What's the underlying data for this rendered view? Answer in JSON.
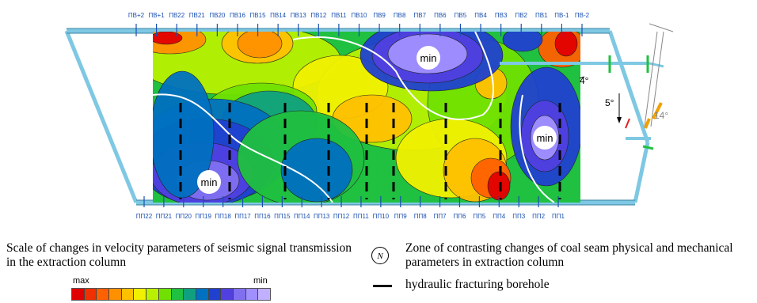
{
  "top_labels": [
    "ПВ+2",
    "ПВ+1",
    "ПВ22",
    "ПВ21",
    "ПВ20",
    "ПВ16",
    "ПВ15",
    "ПВ14",
    "ПВ13",
    "ПВ12",
    "ПВ11",
    "ПВ10",
    "ПВ9",
    "ПВ8",
    "ПВ7",
    "ПВ6",
    "ПВ5",
    "ПВ4",
    "ПВ3",
    "ПВ2",
    "ПВ1",
    "ПВ-1",
    "ПВ-2"
  ],
  "bottom_labels": [
    "ПП22",
    "ПП21",
    "ПП20",
    "ПП19",
    "ПП18",
    "ПП17",
    "ПП16",
    "ПП15",
    "ПП14",
    "ПП13",
    "ПП12",
    "ПП11",
    "ПП10",
    "ПП9",
    "ПП8",
    "ПП7",
    "ПП6",
    "ПП5",
    "ПП4",
    "ПП3",
    "ПП2",
    "ПП1"
  ],
  "min_label": "min",
  "angle_labels": [
    "4°",
    "5°",
    "14°"
  ],
  "legend": {
    "scale_title": "Scale of changes in velocity parameters of seismic signal transmission in the extraction column",
    "scale_max": "max",
    "scale_min": "min",
    "zone_symbol": "N",
    "zone_text": "Zone of contrasting changes of coal seam physical and mechanical parameters in extraction column",
    "borehole_text": "hydraulic fracturing borehole"
  },
  "colors": {
    "scale": [
      "#e00000",
      "#f03000",
      "#ff6000",
      "#ff9000",
      "#ffc000",
      "#f0f000",
      "#b8f000",
      "#70e000",
      "#20c040",
      "#10a080",
      "#0070c0",
      "#2040d0",
      "#5040e0",
      "#8070f0",
      "#a090ff",
      "#c0b0ff"
    ],
    "frame": "#7ec8e3"
  }
}
